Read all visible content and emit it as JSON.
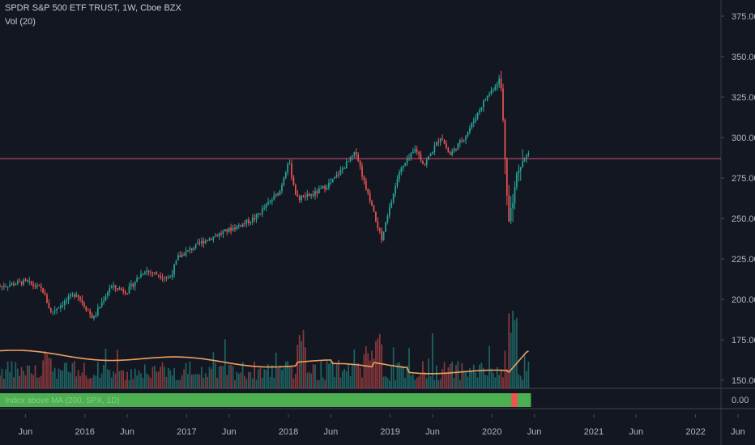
{
  "header": {
    "symbol_line": "SPDR S&P 500 ETF TRUST, 1W, Cboe BZX",
    "volume_line": "Vol (20)"
  },
  "indicator": {
    "label": "Index above MA (200, SPX, 1D)",
    "value_label": "0.00"
  },
  "colors": {
    "background": "#131722",
    "up": "#26a69a",
    "down": "#ef5350",
    "ma": "#f0a060",
    "hline": "#d05070",
    "indicator_green": "#4caf50",
    "indicator_red": "#ef5350",
    "axis_text": "#b2b5be"
  },
  "chart_data": {
    "type": "candlestick",
    "timeframe": "1W",
    "price_axis_ticks": [
      "375.00",
      "350.00",
      "325.00",
      "300.00",
      "275.00",
      "250.00",
      "225.00",
      "200.00",
      "175.00",
      "150.00"
    ],
    "ylim": [
      145,
      385
    ],
    "xlim": [
      "2015-03",
      "2022-04"
    ],
    "time_axis_ticks": [
      "Jun",
      "2016",
      "Jun",
      "2017",
      "Jun",
      "2018",
      "Jun",
      "2019",
      "Jun",
      "2020",
      "Jun",
      "2021",
      "Jun",
      "2022",
      "Jun"
    ],
    "horizontal_line": 287,
    "weekly_close_path": [
      {
        "date": "2015-03",
        "close": 208
      },
      {
        "date": "2015-06",
        "close": 211
      },
      {
        "date": "2015-08",
        "close": 206
      },
      {
        "date": "2015-09",
        "close": 192
      },
      {
        "date": "2015-12",
        "close": 204
      },
      {
        "date": "2016-02",
        "close": 188
      },
      {
        "date": "2016-04",
        "close": 208
      },
      {
        "date": "2016-06",
        "close": 205
      },
      {
        "date": "2016-08",
        "close": 218
      },
      {
        "date": "2016-11",
        "close": 213
      },
      {
        "date": "2016-12",
        "close": 226
      },
      {
        "date": "2017-03",
        "close": 236
      },
      {
        "date": "2017-06",
        "close": 243
      },
      {
        "date": "2017-09",
        "close": 250
      },
      {
        "date": "2017-12",
        "close": 267
      },
      {
        "date": "2018-01",
        "close": 286
      },
      {
        "date": "2018-02",
        "close": 262
      },
      {
        "date": "2018-04",
        "close": 265
      },
      {
        "date": "2018-06",
        "close": 272
      },
      {
        "date": "2018-09",
        "close": 291
      },
      {
        "date": "2018-10",
        "close": 271
      },
      {
        "date": "2018-12",
        "close": 237
      },
      {
        "date": "2019-02",
        "close": 278
      },
      {
        "date": "2019-04",
        "close": 293
      },
      {
        "date": "2019-05",
        "close": 283
      },
      {
        "date": "2019-07",
        "close": 301
      },
      {
        "date": "2019-08",
        "close": 289
      },
      {
        "date": "2019-10",
        "close": 302
      },
      {
        "date": "2019-12",
        "close": 322
      },
      {
        "date": "2020-02",
        "close": 337
      },
      {
        "date": "2020-03",
        "close": 248
      },
      {
        "date": "2020-04",
        "close": 280
      },
      {
        "date": "2020-05",
        "close": 291
      }
    ],
    "volume_ma_20": {
      "name": "Vol (20)",
      "start": 168,
      "end": 168
    },
    "indicator": {
      "name": "Index above MA (200, SPX, 1D)",
      "state": "above",
      "below_period": [
        "2020-03",
        "2020-04"
      ]
    }
  }
}
